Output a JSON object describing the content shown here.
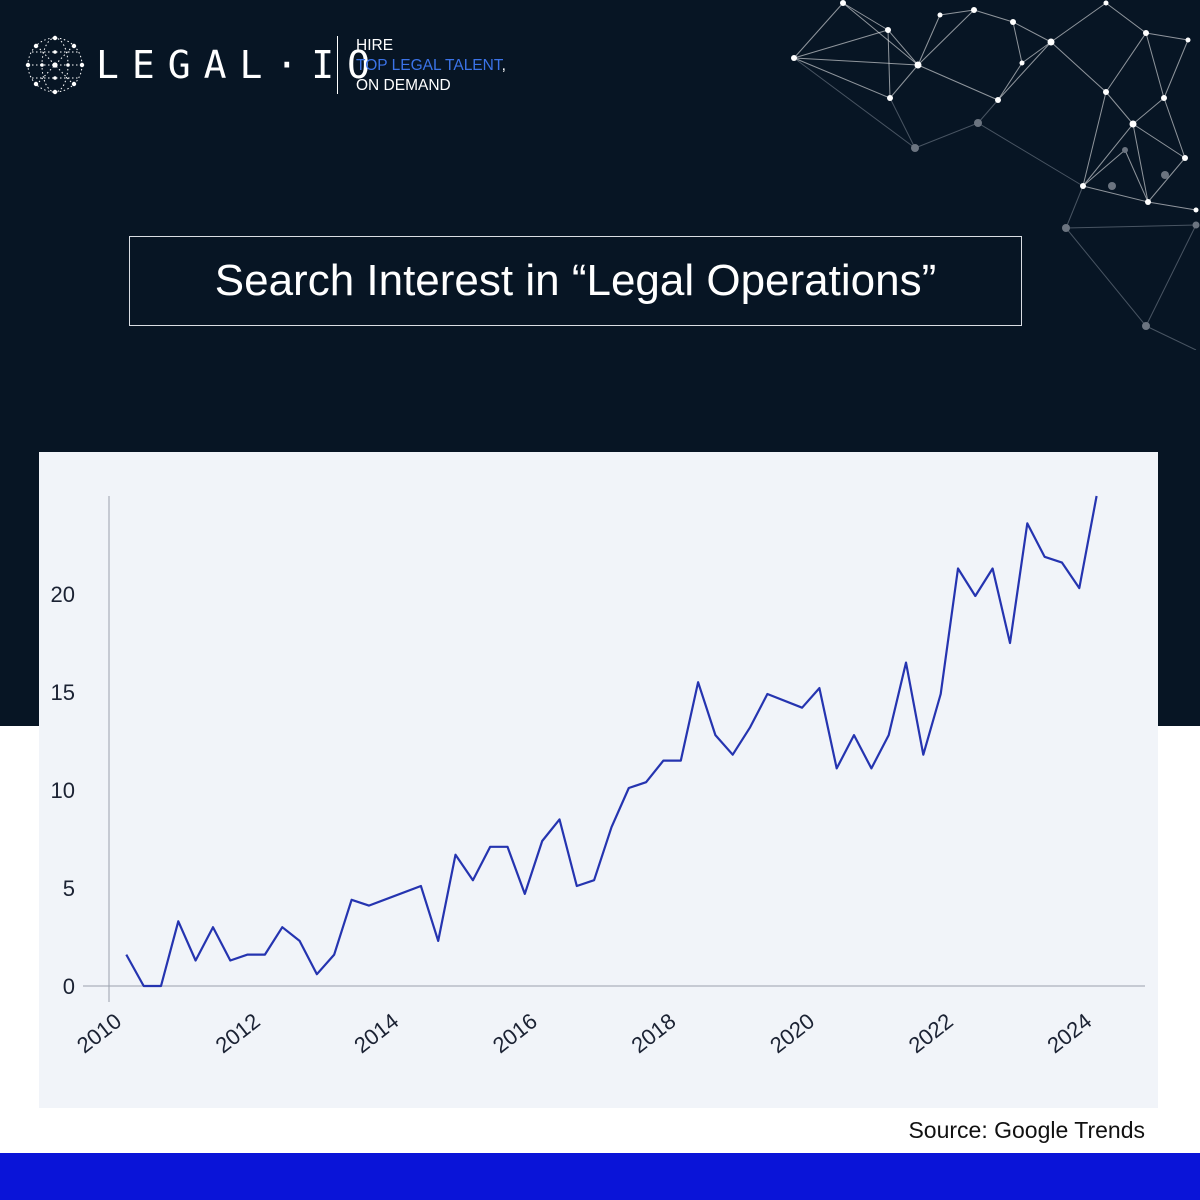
{
  "brand": {
    "name": "LEGAL·IO",
    "tagline_line1": "HIRE",
    "tagline_line2": "TOP LEGAL TALENT",
    "tagline_line2_suffix": ",",
    "tagline_line3": "ON DEMAND"
  },
  "colors": {
    "background_dark": "#071524",
    "accent_blue": "#3b73e8",
    "bottom_bar": "#0a14d8",
    "line": "#2534b0",
    "panel": "#f1f4f9"
  },
  "source": "Source: Google Trends",
  "chart_data": {
    "type": "line",
    "title": "Search Interest in “Legal Operations”",
    "xlabel": "",
    "ylabel": "",
    "xlim": [
      2010,
      2024.4
    ],
    "ylim": [
      0,
      25
    ],
    "grid": false,
    "x_ticks": [
      "2010",
      "2012",
      "2014",
      "2016",
      "2018",
      "2020",
      "2022",
      "2024"
    ],
    "y_ticks": [
      "0",
      "5",
      "10",
      "15",
      "20"
    ],
    "series": [
      {
        "points": [
          [
            2010.25,
            1.6
          ],
          [
            2010.5,
            0.0
          ],
          [
            2010.75,
            0.0
          ],
          [
            2011.0,
            3.3
          ],
          [
            2011.25,
            1.3
          ],
          [
            2011.5,
            3.0
          ],
          [
            2011.75,
            1.3
          ],
          [
            2012.0,
            1.6
          ],
          [
            2012.25,
            1.6
          ],
          [
            2012.5,
            3.0
          ],
          [
            2012.75,
            2.3
          ],
          [
            2013.0,
            0.6
          ],
          [
            2013.25,
            1.6
          ],
          [
            2013.5,
            4.4
          ],
          [
            2013.75,
            4.1
          ],
          [
            2014.5,
            5.1
          ],
          [
            2014.75,
            2.3
          ],
          [
            2015.0,
            6.7
          ],
          [
            2015.25,
            5.4
          ],
          [
            2015.5,
            7.1
          ],
          [
            2015.75,
            7.1
          ],
          [
            2016.0,
            4.7
          ],
          [
            2016.25,
            7.4
          ],
          [
            2016.5,
            8.5
          ],
          [
            2016.75,
            5.1
          ],
          [
            2017.0,
            5.4
          ],
          [
            2017.25,
            8.1
          ],
          [
            2017.5,
            10.1
          ],
          [
            2017.75,
            10.4
          ],
          [
            2018.0,
            11.5
          ],
          [
            2018.25,
            11.5
          ],
          [
            2018.5,
            15.5
          ],
          [
            2018.75,
            12.8
          ],
          [
            2019.0,
            11.8
          ],
          [
            2019.25,
            13.2
          ],
          [
            2019.5,
            14.9
          ],
          [
            2020.0,
            14.2
          ],
          [
            2020.25,
            15.2
          ],
          [
            2020.5,
            11.1
          ],
          [
            2020.75,
            12.8
          ],
          [
            2021.0,
            11.1
          ],
          [
            2021.25,
            12.8
          ],
          [
            2021.5,
            16.5
          ],
          [
            2021.75,
            11.8
          ],
          [
            2022.0,
            14.9
          ],
          [
            2022.25,
            21.3
          ],
          [
            2022.5,
            19.9
          ],
          [
            2022.75,
            21.3
          ],
          [
            2023.0,
            17.5
          ],
          [
            2023.25,
            23.6
          ],
          [
            2023.5,
            21.9
          ],
          [
            2023.75,
            21.6
          ],
          [
            2024.0,
            20.3
          ],
          [
            2024.25,
            25.0
          ]
        ]
      }
    ]
  }
}
